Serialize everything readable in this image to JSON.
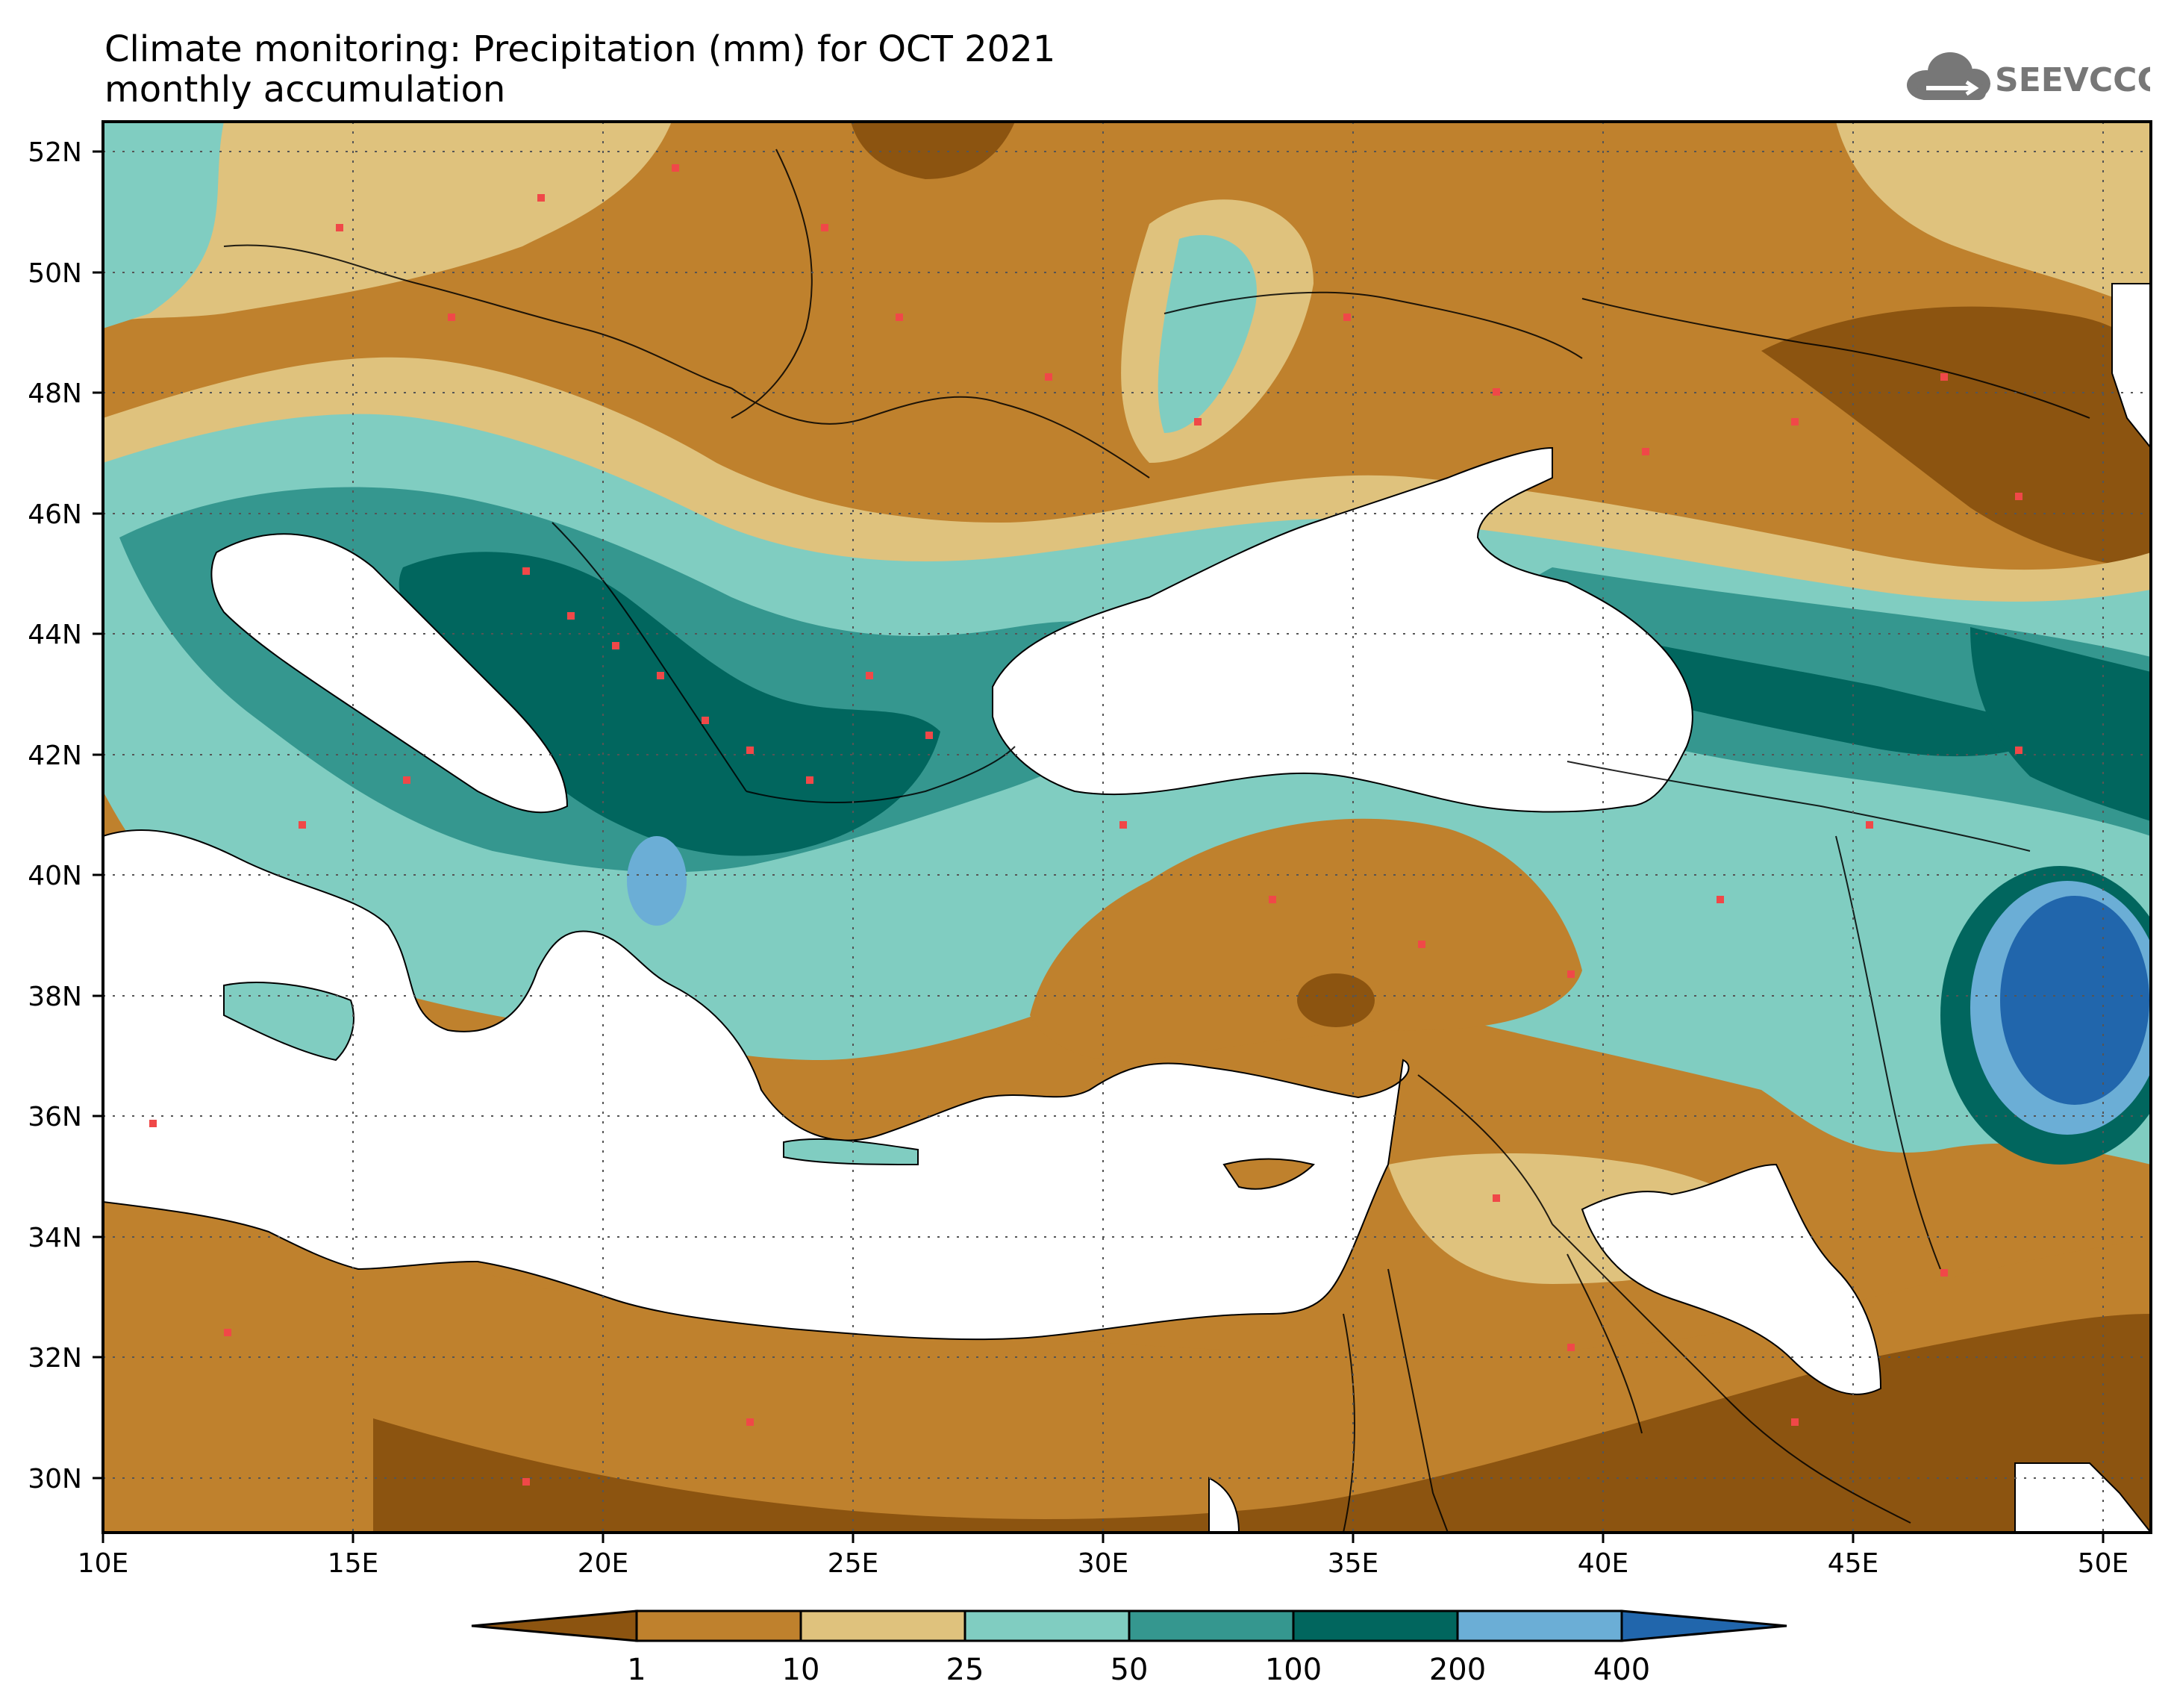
{
  "title_line1": "Climate monitoring: Precipitation (mm) for OCT 2021",
  "title_line2": "monthly accumulation",
  "logo_text": "SEEVCCC",
  "x_ticks": [
    "10E",
    "15E",
    "20E",
    "25E",
    "30E",
    "35E",
    "40E",
    "45E",
    "50E"
  ],
  "y_ticks": [
    "52N",
    "50N",
    "48N",
    "46N",
    "44N",
    "42N",
    "40N",
    "38N",
    "36N",
    "34N",
    "32N",
    "30N"
  ],
  "colorbar": {
    "labels": [
      "1",
      "10",
      "25",
      "50",
      "100",
      "200",
      "400"
    ],
    "colors": [
      "#8c5410",
      "#bf812d",
      "#dfc27d",
      "#80cdc1",
      "#35978f",
      "#01665e",
      "#6baed6",
      "#2166ac"
    ]
  },
  "chart_data": {
    "type": "heatmap",
    "title": "Climate monitoring: Precipitation (mm) for OCT 2021",
    "subtitle": "monthly accumulation",
    "x_range": [
      10,
      51
    ],
    "y_range": [
      29,
      52.5
    ],
    "x_ticks": [
      10,
      15,
      20,
      25,
      30,
      35,
      40,
      45,
      50
    ],
    "y_ticks": [
      52,
      50,
      48,
      46,
      44,
      42,
      40,
      38,
      36,
      34,
      32,
      30
    ],
    "grid": true,
    "class_breaks": [
      1,
      10,
      25,
      50,
      100,
      200,
      400
    ]
  }
}
